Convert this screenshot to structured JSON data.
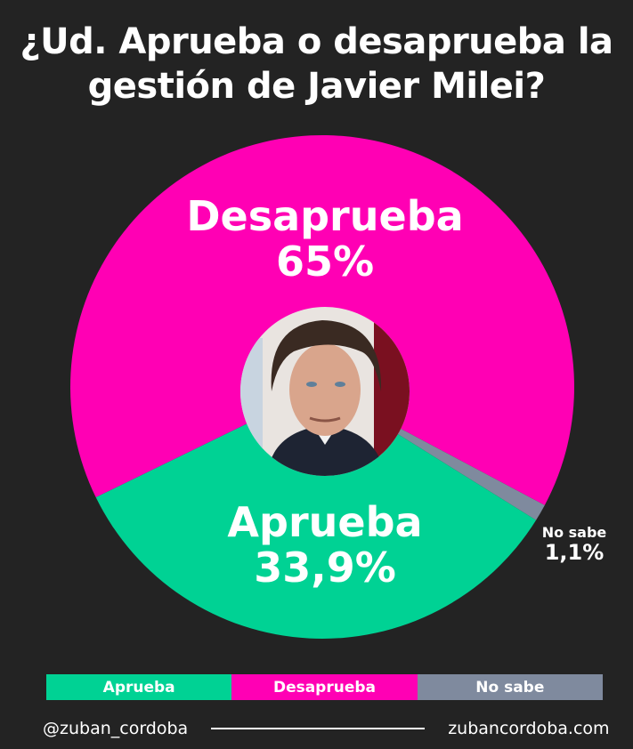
{
  "chart_data": {
    "type": "pie",
    "title": "¿Ud. Aprueba o desaprueba la gestión de Javier Milei?",
    "slices": [
      {
        "name": "No sabe",
        "value": 1.1,
        "label": "1,1%",
        "color": "#7f8a9e"
      },
      {
        "name": "Aprueba",
        "value": 33.9,
        "label": "33,9%",
        "color": "#00d294"
      },
      {
        "name": "Desaprueba",
        "value": 65,
        "label": "65%",
        "color": "#ff00b4"
      }
    ],
    "legend": [
      "Aprueba",
      "Desaprueba",
      "No sabe"
    ],
    "legend_placement": "bottom"
  },
  "footer": {
    "handle": "@zuban_cordoba",
    "website": "zubancordoba.com"
  }
}
